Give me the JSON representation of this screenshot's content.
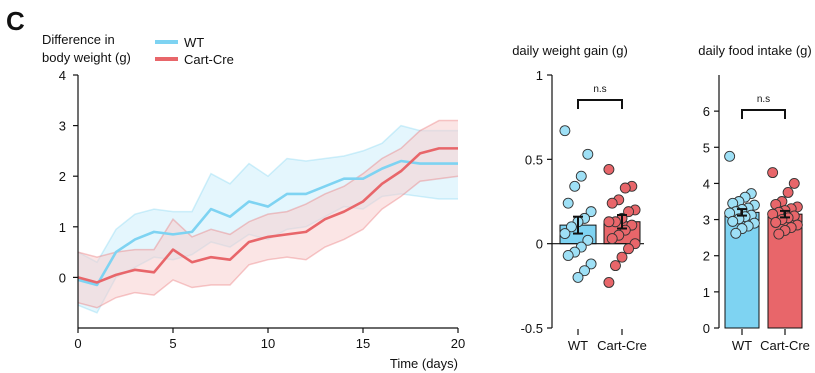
{
  "panel_label": "C",
  "colors": {
    "wt": "#7ED3F2",
    "cre": "#E8666A",
    "wt_band": "#CDEFFB",
    "cre_band": "#F7CFD0",
    "overlap": "#DDD6E6"
  },
  "chart_data": [
    {
      "type": "line",
      "title": "",
      "ylabel_lines": [
        "Difference in",
        "body weight (g)"
      ],
      "xlabel": "Time (days)",
      "xlim": [
        0,
        20
      ],
      "ylim": [
        -1,
        4
      ],
      "xticks": [
        0,
        5,
        10,
        15,
        20
      ],
      "yticks": [
        0,
        1,
        2,
        3,
        4
      ],
      "grid": false,
      "legend_position": "top-left",
      "x": [
        0,
        1,
        2,
        3,
        4,
        5,
        6,
        7,
        8,
        9,
        10,
        11,
        12,
        13,
        14,
        15,
        16,
        17,
        18,
        19,
        20
      ],
      "series": [
        {
          "name": "WT",
          "color": "#7ED3F2",
          "values": [
            -0.05,
            -0.15,
            0.5,
            0.75,
            0.9,
            0.85,
            0.9,
            1.35,
            1.2,
            1.5,
            1.4,
            1.65,
            1.65,
            1.8,
            1.95,
            1.95,
            2.15,
            2.3,
            2.25,
            2.25,
            2.25
          ],
          "upper": [
            0.5,
            0.3,
            0.95,
            1.25,
            1.35,
            1.3,
            1.3,
            2.05,
            1.85,
            2.25,
            2.0,
            2.35,
            2.3,
            2.35,
            2.4,
            2.5,
            2.65,
            3.0,
            2.9,
            2.9,
            2.9
          ],
          "lower": [
            -0.55,
            -0.7,
            0.0,
            0.2,
            0.4,
            0.35,
            0.45,
            0.7,
            0.6,
            0.85,
            0.75,
            0.95,
            1.0,
            1.2,
            1.4,
            1.35,
            1.6,
            1.65,
            1.6,
            1.55,
            1.55
          ]
        },
        {
          "name": "Cart-Cre",
          "color": "#E8666A",
          "values": [
            0.0,
            -0.1,
            0.05,
            0.15,
            0.1,
            0.55,
            0.3,
            0.4,
            0.35,
            0.7,
            0.8,
            0.85,
            0.9,
            1.15,
            1.3,
            1.5,
            1.85,
            2.1,
            2.45,
            2.55,
            2.55
          ],
          "upper": [
            0.5,
            0.4,
            0.5,
            0.55,
            0.55,
            1.15,
            0.8,
            0.95,
            0.85,
            1.1,
            1.25,
            1.3,
            1.45,
            1.65,
            1.8,
            2.05,
            2.35,
            2.55,
            2.9,
            3.1,
            3.1
          ],
          "lower": [
            -0.5,
            -0.6,
            -0.4,
            -0.3,
            -0.35,
            -0.05,
            -0.2,
            -0.15,
            -0.15,
            0.25,
            0.35,
            0.4,
            0.35,
            0.6,
            0.75,
            0.95,
            1.35,
            1.6,
            1.9,
            1.95,
            2.0
          ]
        }
      ]
    },
    {
      "type": "bar",
      "title": "daily weight gain (g)",
      "categories": [
        "WT",
        "Cart-Cre"
      ],
      "values": [
        0.11,
        0.13
      ],
      "sem": [
        0.05,
        0.04
      ],
      "ylim": [
        -0.5,
        1
      ],
      "yticks": [
        -0.5,
        0,
        0.5,
        1
      ],
      "ytick_labels": [
        "-0.5",
        "0",
        "0.5",
        "1"
      ],
      "significance": "n.s",
      "points": [
        [
          0.67,
          0.53,
          0.4,
          0.34,
          0.24,
          0.19,
          0.15,
          0.13,
          0.1,
          0.06,
          0.02,
          -0.02,
          -0.05,
          -0.07,
          -0.12,
          -0.16,
          -0.2
        ],
        [
          0.44,
          0.34,
          0.33,
          0.26,
          0.24,
          0.2,
          0.19,
          0.15,
          0.13,
          0.13,
          0.11,
          0.08,
          0.05,
          0.03,
          0.0,
          -0.03,
          -0.08,
          -0.13,
          -0.23
        ]
      ]
    },
    {
      "type": "bar",
      "title": "daily food intake (g)",
      "categories": [
        "WT",
        "Cart-Cre"
      ],
      "values": [
        3.2,
        3.15
      ],
      "sem": [
        0.09,
        0.09
      ],
      "ylim": [
        0,
        7
      ],
      "yticks": [
        0,
        1,
        2,
        3,
        4,
        5,
        6
      ],
      "ytick_labels": [
        "0",
        "1",
        "2",
        "3",
        "4",
        "5",
        "6"
      ],
      "significance": "n.s",
      "points": [
        [
          4.75,
          3.72,
          3.62,
          3.5,
          3.45,
          3.4,
          3.32,
          3.28,
          3.22,
          3.18,
          3.12,
          3.08,
          3.02,
          2.95,
          2.9,
          2.82,
          2.75,
          2.62
        ],
        [
          4.3,
          4.0,
          3.75,
          3.5,
          3.42,
          3.35,
          3.3,
          3.25,
          3.2,
          3.15,
          3.1,
          3.05,
          3.0,
          2.92,
          2.85,
          2.78,
          2.7,
          2.6
        ]
      ]
    }
  ]
}
